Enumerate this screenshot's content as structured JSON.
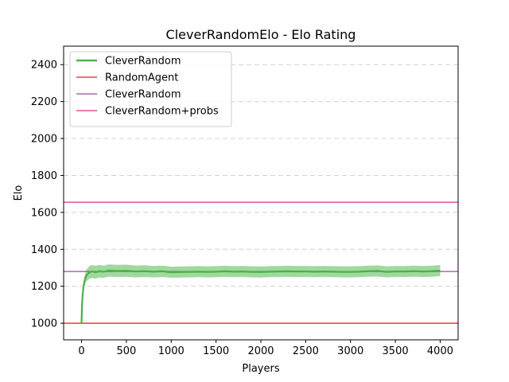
{
  "chart_data": {
    "type": "line",
    "title": "CleverRandomElo - Elo Rating",
    "xlabel": "Players",
    "ylabel": "Elo",
    "xlim": [
      -200,
      4200
    ],
    "ylim": [
      910,
      2500
    ],
    "xticks": [
      0,
      500,
      1000,
      1500,
      2000,
      2500,
      3000,
      3500,
      4000
    ],
    "yticks": [
      1000,
      1200,
      1400,
      1600,
      1800,
      2000,
      2200,
      2400
    ],
    "grid": "y-dashed",
    "legend_position": "top-left",
    "series": [
      {
        "name": "CleverRandom",
        "kind": "line-with-band",
        "color": "#4daf4a",
        "band_color": "#7fcc7c",
        "x": [
          0,
          5,
          10,
          20,
          30,
          40,
          50,
          60,
          80,
          100,
          125,
          150,
          200,
          250,
          300,
          400,
          500,
          600,
          700,
          800,
          900,
          1000,
          1100,
          1200,
          1300,
          1400,
          1500,
          1600,
          1700,
          1800,
          1900,
          2000,
          2100,
          2200,
          2300,
          2400,
          2500,
          2600,
          2700,
          2800,
          2900,
          3000,
          3100,
          3200,
          3300,
          3400,
          3500,
          3600,
          3700,
          3800,
          3900,
          4000
        ],
        "y": [
          1000,
          1090,
          1140,
          1190,
          1220,
          1240,
          1255,
          1262,
          1272,
          1278,
          1280,
          1276,
          1281,
          1279,
          1285,
          1283,
          1284,
          1280,
          1282,
          1279,
          1281,
          1276,
          1277,
          1278,
          1279,
          1278,
          1279,
          1281,
          1279,
          1280,
          1278,
          1277,
          1279,
          1280,
          1281,
          1280,
          1280,
          1279,
          1280,
          1279,
          1278,
          1278,
          1279,
          1282,
          1283,
          1278,
          1280,
          1280,
          1282,
          1280,
          1281,
          1285
        ],
        "band_half_width": [
          2,
          10,
          15,
          20,
          25,
          28,
          30,
          32,
          34,
          35,
          35,
          35,
          34,
          33,
          33,
          33,
          33,
          32,
          32,
          31,
          31,
          30,
          30,
          30,
          30,
          30,
          30,
          30,
          30,
          30,
          30,
          30,
          30,
          30,
          30,
          30,
          30,
          30,
          30,
          30,
          30,
          30,
          30,
          30,
          30,
          30,
          30,
          30,
          30,
          30,
          30,
          30
        ]
      },
      {
        "name": "RandomAgent",
        "kind": "hline",
        "value": 1000,
        "color": "#e41a1c"
      },
      {
        "name": "CleverRandom",
        "kind": "hline",
        "value": 1280,
        "color": "#984ea3"
      },
      {
        "name": "CleverRandom+probs",
        "kind": "hline",
        "value": 1655,
        "color": "#e7298a"
      }
    ]
  }
}
